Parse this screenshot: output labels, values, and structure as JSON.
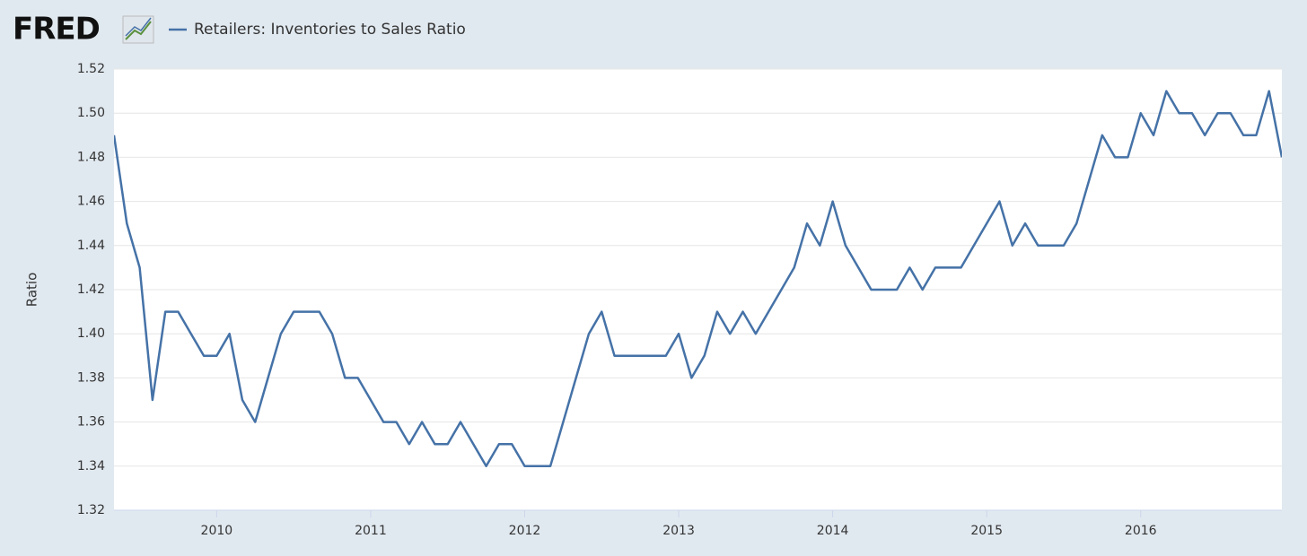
{
  "chart_data": {
    "type": "line",
    "logo": "FRED",
    "y_label": "Ratio",
    "series": [
      {
        "name": "Retailers: Inventories to Sales Ratio",
        "color": "#4572a7",
        "values": [
          1.49,
          1.45,
          1.43,
          1.37,
          1.41,
          1.41,
          1.4,
          1.39,
          1.39,
          1.4,
          1.37,
          1.36,
          1.38,
          1.4,
          1.41,
          1.41,
          1.41,
          1.4,
          1.38,
          1.38,
          1.37,
          1.36,
          1.36,
          1.35,
          1.36,
          1.35,
          1.35,
          1.36,
          1.35,
          1.34,
          1.35,
          1.35,
          1.34,
          1.34,
          1.34,
          1.36,
          1.38,
          1.4,
          1.41,
          1.39,
          1.39,
          1.39,
          1.39,
          1.39,
          1.4,
          1.38,
          1.39,
          1.41,
          1.4,
          1.41,
          1.4,
          1.41,
          1.42,
          1.43,
          1.45,
          1.44,
          1.46,
          1.44,
          1.43,
          1.42,
          1.42,
          1.42,
          1.43,
          1.42,
          1.43,
          1.43,
          1.43,
          1.44,
          1.45,
          1.46,
          1.44,
          1.45,
          1.44,
          1.44,
          1.44,
          1.45,
          1.47,
          1.49,
          1.48,
          1.48,
          1.5,
          1.49,
          1.51,
          1.5,
          1.5,
          1.49,
          1.5,
          1.5,
          1.49,
          1.49,
          1.51,
          1.48
        ]
      }
    ],
    "x": [
      "2009-05",
      "2009-06",
      "2009-07",
      "2009-08",
      "2009-09",
      "2009-10",
      "2009-11",
      "2009-12",
      "2010-01",
      "2010-02",
      "2010-03",
      "2010-04",
      "2010-05",
      "2010-06",
      "2010-07",
      "2010-08",
      "2010-09",
      "2010-10",
      "2010-11",
      "2010-12",
      "2011-01",
      "2011-02",
      "2011-03",
      "2011-04",
      "2011-05",
      "2011-06",
      "2011-07",
      "2011-08",
      "2011-09",
      "2011-10",
      "2011-11",
      "2011-12",
      "2012-01",
      "2012-02",
      "2012-03",
      "2012-04",
      "2012-05",
      "2012-06",
      "2012-07",
      "2012-08",
      "2012-09",
      "2012-10",
      "2012-11",
      "2012-12",
      "2013-01",
      "2013-02",
      "2013-03",
      "2013-04",
      "2013-05",
      "2013-06",
      "2013-07",
      "2013-08",
      "2013-09",
      "2013-10",
      "2013-11",
      "2013-12",
      "2014-01",
      "2014-02",
      "2014-03",
      "2014-04",
      "2014-05",
      "2014-06",
      "2014-07",
      "2014-08",
      "2014-09",
      "2014-10",
      "2014-11",
      "2014-12",
      "2015-01",
      "2015-02",
      "2015-03",
      "2015-04",
      "2015-05",
      "2015-06",
      "2015-07",
      "2015-08",
      "2015-09",
      "2015-10",
      "2015-11",
      "2015-12",
      "2016-01",
      "2016-02",
      "2016-03",
      "2016-04",
      "2016-05",
      "2016-06",
      "2016-07",
      "2016-08",
      "2016-09",
      "2016-10",
      "2016-11",
      "2016-12"
    ],
    "xlim": [
      "2009-05",
      "2016-12"
    ],
    "xticks": [
      {
        "value": "2010-01",
        "label": "2010"
      },
      {
        "value": "2011-01",
        "label": "2011"
      },
      {
        "value": "2012-01",
        "label": "2012"
      },
      {
        "value": "2013-01",
        "label": "2013"
      },
      {
        "value": "2014-01",
        "label": "2014"
      },
      {
        "value": "2015-01",
        "label": "2015"
      },
      {
        "value": "2016-01",
        "label": "2016"
      }
    ],
    "ylim": [
      1.32,
      1.52
    ],
    "yticks": [
      1.32,
      1.34,
      1.36,
      1.38,
      {
        "value": 1.4,
        "label": "1.40"
      },
      1.42,
      1.44,
      1.46,
      1.48,
      {
        "value": 1.5,
        "label": "1.50"
      },
      1.52
    ],
    "grid": true
  }
}
